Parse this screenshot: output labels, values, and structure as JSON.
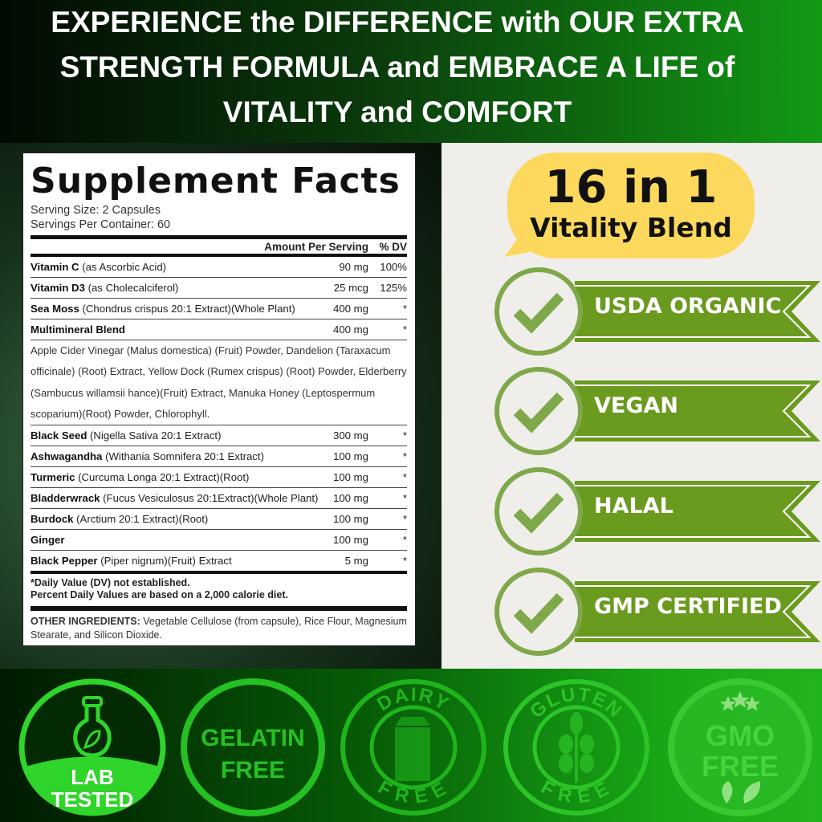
{
  "headline": [
    "EXPERIENCE the DIFFERENCE with OUR EXTRA",
    "STRENGTH FORMULA and EMBRACE A LIFE of",
    "VITALITY and COMFORT"
  ],
  "facts": {
    "title": "Supplement Facts",
    "serving_size": "Serving Size: 2 Capsules",
    "servings_per_container": "Servings Per Container: 60",
    "col_amount": "Amount Per Serving",
    "col_dv": "% DV",
    "rows_top": [
      {
        "name": "Vitamin C",
        "detail": " (as Ascorbic Acid)",
        "amount": "90 mg",
        "dv": "100%"
      },
      {
        "name": "Vitamin D3",
        "detail": " (as Cholecalciferol)",
        "amount": "25 mcg",
        "dv": "125%"
      },
      {
        "name": "Sea Moss",
        "detail": " (Chondrus crispus 20:1 Extract)(Whole Plant)",
        "amount": "400 mg",
        "dv": "*"
      },
      {
        "name": "Multimineral Blend",
        "detail": "",
        "amount": "400 mg",
        "dv": "*"
      }
    ],
    "blend_text": "Apple Cider Vinegar (Malus domestica) (Fruit) Powder, Dandelion (Taraxacum officinale) (Root) Extract, Yellow Dock (Rumex crispus) (Root) Powder, Elderberry (Sambucus willamsii hance)(Fruit) Extract, Manuka Honey (Leptospermum scoparium)(Root) Powder, Chlorophyll.",
    "rows_bottom": [
      {
        "name": "Black Seed",
        "detail": " (Nigella Sativa 20:1 Extract)",
        "amount": "300 mg",
        "dv": "*"
      },
      {
        "name": "Ashwagandha",
        "detail": " (Withania Somnifera 20:1 Extract)",
        "amount": "100 mg",
        "dv": "*"
      },
      {
        "name": "Turmeric",
        "detail": " (Curcuma Longa 20:1 Extract)(Root)",
        "amount": "100 mg",
        "dv": "*"
      },
      {
        "name": "Bladderwrack",
        "detail": " (Fucus Vesiculosus 20:1Extract)(Whole Plant)",
        "amount": "100 mg",
        "dv": "*"
      },
      {
        "name": "Burdock",
        "detail": " (Arctium 20:1 Extract)(Root)",
        "amount": "100 mg",
        "dv": "*"
      },
      {
        "name": "Ginger",
        "detail": "",
        "amount": "100 mg",
        "dv": "*"
      },
      {
        "name": "Black Pepper",
        "detail": " (Piper nigrum)(Fruit) Extract",
        "amount": "5 mg",
        "dv": "*"
      }
    ],
    "footnote1": "*Daily Value (DV) not established.",
    "footnote2": "Percent Daily Values are based on a 2,000 calorie diet.",
    "other_label": "OTHER INGREDIENTS:",
    "other_text": " Vegetable Cellulose (from capsule), Rice Flour, Magnesium Stearate, and Silicon Dioxide."
  },
  "bubble": {
    "line1": "16 in 1",
    "line2": "Vitality Blend",
    "color": "#fcd95c"
  },
  "certifications": [
    "USDA ORGANIC",
    "VEGAN",
    "HALAL",
    "GMP CERTIFIED"
  ],
  "cert_color": "#6a9a1e",
  "badges": [
    {
      "icon": "flask-leaf-icon",
      "text": [
        "LAB",
        "TESTED"
      ]
    },
    {
      "icon": "none",
      "text": [
        "GELATIN",
        "FREE"
      ]
    },
    {
      "icon": "milk-carton-icon",
      "text": [
        "DAIRY",
        "FREE"
      ]
    },
    {
      "icon": "wheat-icon",
      "text": [
        "GLUTEN",
        "FREE"
      ]
    },
    {
      "icon": "leaves-stars-icon",
      "text": [
        "GMO",
        "FREE"
      ]
    }
  ]
}
